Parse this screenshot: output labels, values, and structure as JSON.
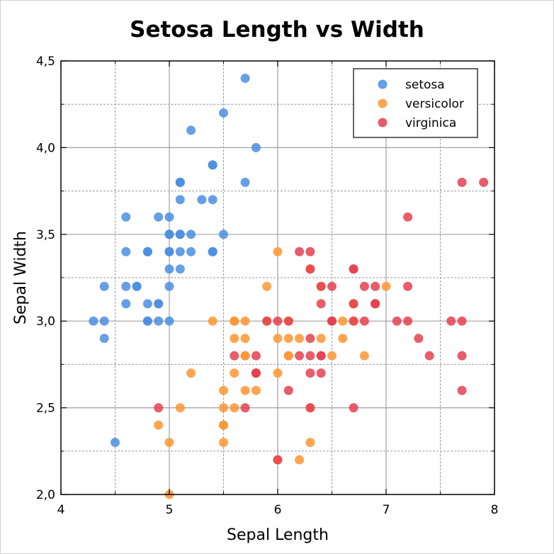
{
  "chart_data": {
    "type": "scatter",
    "title": "Setosa Length vs Width",
    "xlabel": "Sepal Length",
    "ylabel": "Sepal Width",
    "xlim": [
      4,
      8
    ],
    "ylim": [
      2.0,
      4.5
    ],
    "xticks": [
      "4",
      "5",
      "6",
      "7",
      "8"
    ],
    "yticks": [
      "2,0",
      "2,5",
      "3,0",
      "3,5",
      "4,0",
      "4,5"
    ],
    "grid": true,
    "legend_position": "top-right",
    "series": [
      {
        "name": "setosa",
        "color": "#4a8ee0",
        "x": [
          5.1,
          4.9,
          4.7,
          4.6,
          5.0,
          5.4,
          4.6,
          5.0,
          4.4,
          4.9,
          5.4,
          4.8,
          4.8,
          4.3,
          5.8,
          5.7,
          5.4,
          5.1,
          5.7,
          5.1,
          5.4,
          5.1,
          4.6,
          5.1,
          4.8,
          5.0,
          5.0,
          5.2,
          5.2,
          4.7,
          4.8,
          5.4,
          5.2,
          5.5,
          4.9,
          5.0,
          5.5,
          4.9,
          4.4,
          5.1,
          5.0,
          4.5,
          4.4,
          5.0,
          5.1,
          4.8,
          5.1,
          4.6,
          5.3,
          5.0
        ],
        "y": [
          3.5,
          3.0,
          3.2,
          3.1,
          3.6,
          3.9,
          3.4,
          3.4,
          2.9,
          3.1,
          3.7,
          3.4,
          3.0,
          3.0,
          4.0,
          4.4,
          3.9,
          3.5,
          3.8,
          3.8,
          3.4,
          3.7,
          3.6,
          3.3,
          3.4,
          3.0,
          3.4,
          3.5,
          3.4,
          3.2,
          3.1,
          3.4,
          4.1,
          4.2,
          3.1,
          3.2,
          3.5,
          3.6,
          3.0,
          3.4,
          3.5,
          2.3,
          3.2,
          3.5,
          3.8,
          3.0,
          3.8,
          3.2,
          3.7,
          3.3
        ]
      },
      {
        "name": "versicolor",
        "color": "#ff9533",
        "x": [
          7.0,
          6.4,
          6.9,
          5.5,
          6.5,
          5.7,
          6.3,
          4.9,
          6.6,
          5.2,
          5.0,
          5.9,
          6.0,
          6.1,
          5.6,
          6.7,
          5.6,
          5.8,
          6.2,
          5.6,
          5.9,
          6.1,
          6.3,
          6.1,
          6.4,
          6.6,
          6.8,
          6.7,
          6.0,
          5.7,
          5.5,
          5.5,
          5.8,
          6.0,
          5.4,
          6.0,
          6.7,
          6.3,
          5.6,
          5.5,
          5.5,
          6.1,
          5.8,
          5.0,
          5.6,
          5.7,
          5.7,
          6.2,
          5.1,
          5.7
        ],
        "y": [
          3.2,
          3.2,
          3.1,
          2.3,
          2.8,
          2.8,
          3.3,
          2.4,
          2.9,
          2.7,
          2.0,
          3.0,
          2.2,
          2.9,
          2.9,
          3.1,
          3.0,
          2.7,
          2.2,
          2.5,
          3.2,
          2.8,
          2.5,
          2.8,
          2.9,
          3.0,
          2.8,
          3.0,
          2.9,
          2.6,
          2.4,
          2.4,
          2.7,
          2.7,
          3.0,
          3.4,
          3.1,
          2.3,
          3.0,
          2.5,
          2.6,
          3.0,
          2.6,
          2.3,
          2.7,
          3.0,
          2.9,
          2.9,
          2.5,
          2.8
        ]
      },
      {
        "name": "virginica",
        "color": "#e5404f",
        "x": [
          6.3,
          5.8,
          7.1,
          6.3,
          6.5,
          7.6,
          4.9,
          7.3,
          6.7,
          7.2,
          6.5,
          6.4,
          6.8,
          5.7,
          5.8,
          6.4,
          6.5,
          7.7,
          7.7,
          6.0,
          6.9,
          5.6,
          7.7,
          6.3,
          6.7,
          7.2,
          6.2,
          6.1,
          6.4,
          7.2,
          7.4,
          7.9,
          6.4,
          6.3,
          6.1,
          7.7,
          6.3,
          6.4,
          6.0,
          6.9,
          6.7,
          6.9,
          5.8,
          6.8,
          6.7,
          6.7,
          6.3,
          6.5,
          6.2,
          5.9
        ],
        "y": [
          3.3,
          2.7,
          3.0,
          2.9,
          3.0,
          3.0,
          2.5,
          2.9,
          2.5,
          3.6,
          3.2,
          2.7,
          3.0,
          2.5,
          2.8,
          3.2,
          3.0,
          3.8,
          2.6,
          2.2,
          3.2,
          2.8,
          2.8,
          2.7,
          3.3,
          3.2,
          2.8,
          3.0,
          2.8,
          3.0,
          2.8,
          3.8,
          2.8,
          2.8,
          2.6,
          3.0,
          3.4,
          3.1,
          3.0,
          3.1,
          3.1,
          3.1,
          2.7,
          3.2,
          3.3,
          3.0,
          2.5,
          3.0,
          3.4,
          3.0
        ]
      }
    ]
  }
}
